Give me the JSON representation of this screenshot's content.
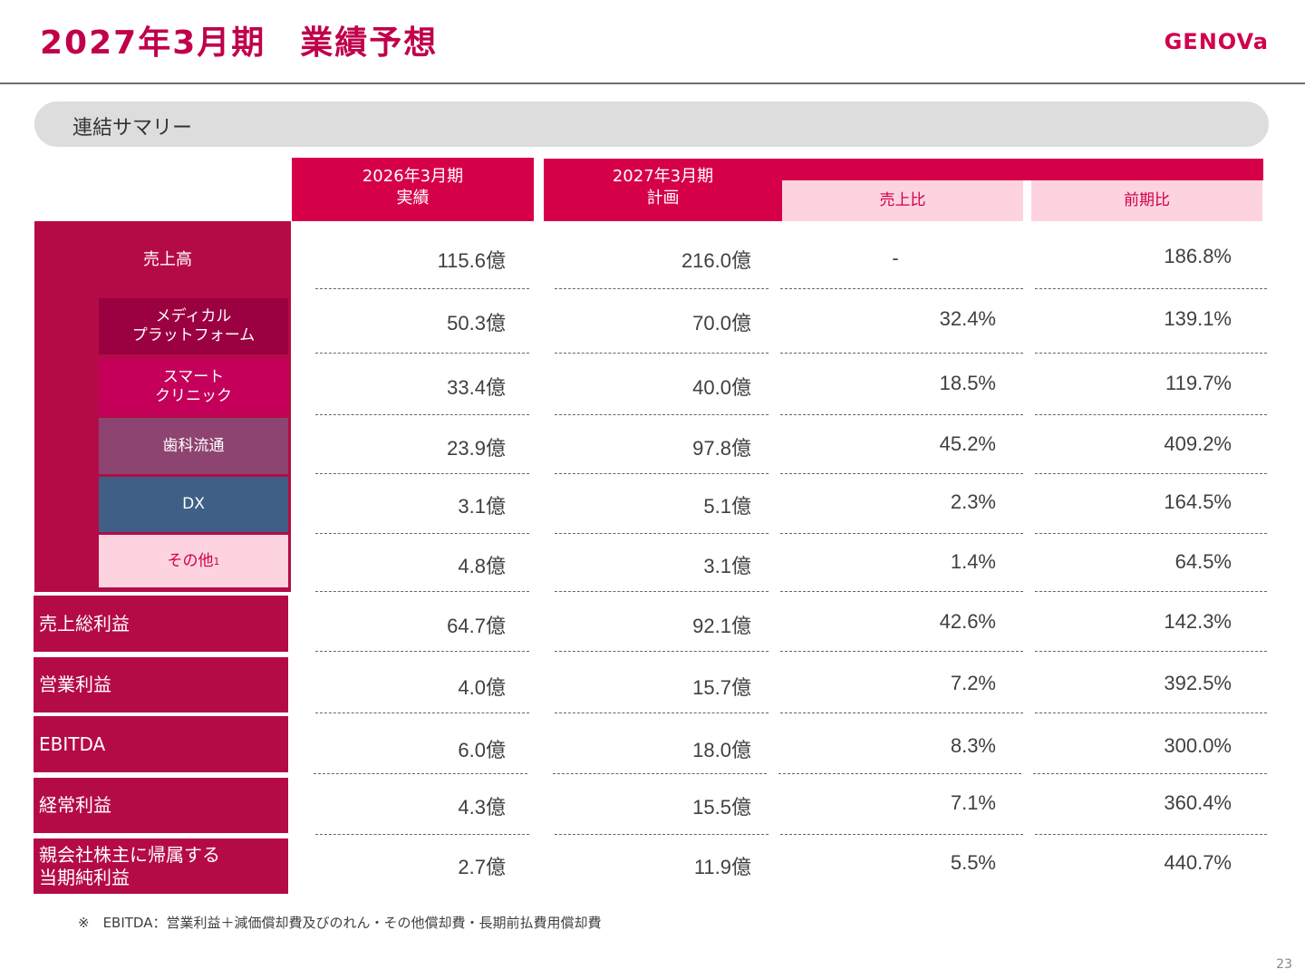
{
  "header": {
    "title": "2027年3月期　業績予想",
    "logo": "GENOVa"
  },
  "section": {
    "label": "連結サマリー"
  },
  "columns": {
    "actual_line1": "2026年3月期",
    "actual_line2": "実績",
    "plan_line1": "2027年3月期",
    "plan_line2": "計画",
    "ratio": "売上比",
    "yoy": "前期比"
  },
  "segments": {
    "medical_line1": "メディカル",
    "medical_line2": "プラットフォーム",
    "smart_line1": "スマート",
    "smart_line2": "クリニック",
    "dental": "歯科流通",
    "dx": "DX",
    "other": "その他",
    "other_note": "1"
  },
  "labels": {
    "sales": "売上高",
    "gross": "売上総利益",
    "operating": "営業利益",
    "ebitda": "EBITDA",
    "ordinary": "経常利益",
    "net_line1": "親会社株主に帰属する",
    "net_line2": "当期純利益"
  },
  "colors": {
    "brand": "#d6004a",
    "row_label": "#b40b48",
    "medical": "#9b0040",
    "smart": "#c4005a",
    "dental": "#8e4470",
    "dx": "#3f5f86",
    "other": "#fdd3df",
    "sub_header": "#fdd3df"
  },
  "rows": [
    {
      "key": "sales",
      "actual": "115.6億",
      "plan": "216.0億",
      "ratio": "-",
      "yoy": "186.8%"
    },
    {
      "key": "medical",
      "actual": "50.3億",
      "plan": "70.0億",
      "ratio": "32.4%",
      "yoy": "139.1%"
    },
    {
      "key": "smart",
      "actual": "33.4億",
      "plan": "40.0億",
      "ratio": "18.5%",
      "yoy": "119.7%"
    },
    {
      "key": "dental",
      "actual": "23.9億",
      "plan": "97.8億",
      "ratio": "45.2%",
      "yoy": "409.2%"
    },
    {
      "key": "dx",
      "actual": "3.1億",
      "plan": "5.1億",
      "ratio": "2.3%",
      "yoy": "164.5%"
    },
    {
      "key": "other",
      "actual": "4.8億",
      "plan": "3.1億",
      "ratio": "1.4%",
      "yoy": "64.5%"
    },
    {
      "key": "gross",
      "actual": "64.7億",
      "plan": "92.1億",
      "ratio": "42.6%",
      "yoy": "142.3%"
    },
    {
      "key": "operating",
      "actual": "4.0億",
      "plan": "15.7億",
      "ratio": "7.2%",
      "yoy": "392.5%"
    },
    {
      "key": "ebitda",
      "actual": "6.0億",
      "plan": "18.0億",
      "ratio": "8.3%",
      "yoy": "300.0%"
    },
    {
      "key": "ordinary",
      "actual": "4.3億",
      "plan": "15.5億",
      "ratio": "7.1%",
      "yoy": "360.4%"
    },
    {
      "key": "net",
      "actual": "2.7億",
      "plan": "11.9億",
      "ratio": "5.5%",
      "yoy": "440.7%"
    }
  ],
  "footnote": "※　EBITDA：営業利益＋減価償却費及びのれん・その他償却費・長期前払費用償却費",
  "page_number": "23"
}
